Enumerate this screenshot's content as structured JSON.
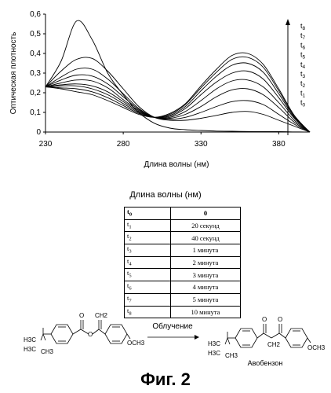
{
  "chart_data": {
    "type": "line",
    "xlabel": "Длина волны (нм)",
    "ylabel": "Оптическая плотность",
    "xlim": [
      230,
      400
    ],
    "ylim": [
      0,
      0.6
    ],
    "x_ticks": [
      "230",
      "280",
      "330",
      "380"
    ],
    "y_ticks": [
      "0",
      "0,1",
      "0,2",
      "0,3",
      "0,4",
      "0,5",
      "0,6"
    ],
    "legend_labels": [
      "t8",
      "t7",
      "t6",
      "t5",
      "t4",
      "t3",
      "t2",
      "t1",
      "t0"
    ],
    "x": [
      230,
      240,
      250,
      260,
      270,
      280,
      290,
      300,
      310,
      320,
      330,
      340,
      350,
      360,
      370,
      380,
      390,
      400
    ],
    "series": [
      {
        "name": "t0",
        "values": [
          0.23,
          0.36,
          0.565,
          0.47,
          0.3,
          0.19,
          0.1,
          0.045,
          0.02,
          0.012,
          0.008,
          0.005,
          0.004,
          0.003,
          0.002,
          0.002,
          0.001,
          0
        ]
      },
      {
        "name": "t1",
        "values": [
          0.23,
          0.31,
          0.37,
          0.375,
          0.31,
          0.22,
          0.13,
          0.075,
          0.06,
          0.06,
          0.07,
          0.085,
          0.1,
          0.105,
          0.09,
          0.06,
          0.03,
          0
        ]
      },
      {
        "name": "t2",
        "values": [
          0.23,
          0.28,
          0.32,
          0.32,
          0.27,
          0.195,
          0.12,
          0.075,
          0.065,
          0.075,
          0.1,
          0.13,
          0.155,
          0.16,
          0.14,
          0.09,
          0.04,
          0
        ]
      },
      {
        "name": "t3",
        "values": [
          0.23,
          0.265,
          0.29,
          0.285,
          0.245,
          0.18,
          0.115,
          0.075,
          0.07,
          0.09,
          0.13,
          0.18,
          0.215,
          0.22,
          0.19,
          0.125,
          0.05,
          0
        ]
      },
      {
        "name": "t4",
        "values": [
          0.23,
          0.25,
          0.265,
          0.26,
          0.225,
          0.165,
          0.11,
          0.075,
          0.075,
          0.105,
          0.16,
          0.22,
          0.26,
          0.265,
          0.23,
          0.15,
          0.06,
          0
        ]
      },
      {
        "name": "t5",
        "values": [
          0.23,
          0.24,
          0.245,
          0.235,
          0.205,
          0.155,
          0.105,
          0.075,
          0.08,
          0.12,
          0.19,
          0.255,
          0.3,
          0.31,
          0.27,
          0.175,
          0.07,
          0
        ]
      },
      {
        "name": "t6",
        "values": [
          0.23,
          0.235,
          0.235,
          0.22,
          0.19,
          0.145,
          0.1,
          0.075,
          0.085,
          0.13,
          0.21,
          0.285,
          0.34,
          0.35,
          0.305,
          0.195,
          0.075,
          0
        ]
      },
      {
        "name": "t7",
        "values": [
          0.23,
          0.225,
          0.22,
          0.205,
          0.175,
          0.135,
          0.095,
          0.075,
          0.09,
          0.14,
          0.225,
          0.305,
          0.37,
          0.38,
          0.33,
          0.21,
          0.08,
          0
        ]
      },
      {
        "name": "t8",
        "values": [
          0.23,
          0.22,
          0.205,
          0.19,
          0.16,
          0.125,
          0.09,
          0.075,
          0.095,
          0.145,
          0.235,
          0.32,
          0.39,
          0.4,
          0.345,
          0.22,
          0.085,
          0
        ]
      }
    ]
  },
  "subtitle": "Длина волны (нм)",
  "table": {
    "header": {
      "k": "t",
      "ksub": "0",
      "v": "0"
    },
    "rows": [
      {
        "k": "t",
        "ksub": "1",
        "v": "20 секунд"
      },
      {
        "k": "t",
        "ksub": "2",
        "v": "40 секунд"
      },
      {
        "k": "t",
        "ksub": "3",
        "v": "1 минута"
      },
      {
        "k": "t",
        "ksub": "4",
        "v": "2 минута"
      },
      {
        "k": "t",
        "ksub": "5",
        "v": "3 минута"
      },
      {
        "k": "t",
        "ksub": "6",
        "v": "4 минута"
      },
      {
        "k": "t",
        "ksub": "7",
        "v": "5 минута"
      },
      {
        "k": "t",
        "ksub": "8",
        "v": "10 минута"
      }
    ]
  },
  "scheme": {
    "reactant_label_1": "H3C",
    "reactant_label_2": "H3C",
    "reactant_label_3": "CH3",
    "reactant_och3": "OCH3",
    "reactant_ch2": "CH2",
    "arrow_label": "Облучение",
    "product_label_1": "H3C",
    "product_label_2": "H3C",
    "product_label_3": "CH3",
    "product_och3": "OCH3",
    "product_ch2": "CH2",
    "product_name": "Авобензон"
  },
  "figure_title": "Фиг. 2"
}
